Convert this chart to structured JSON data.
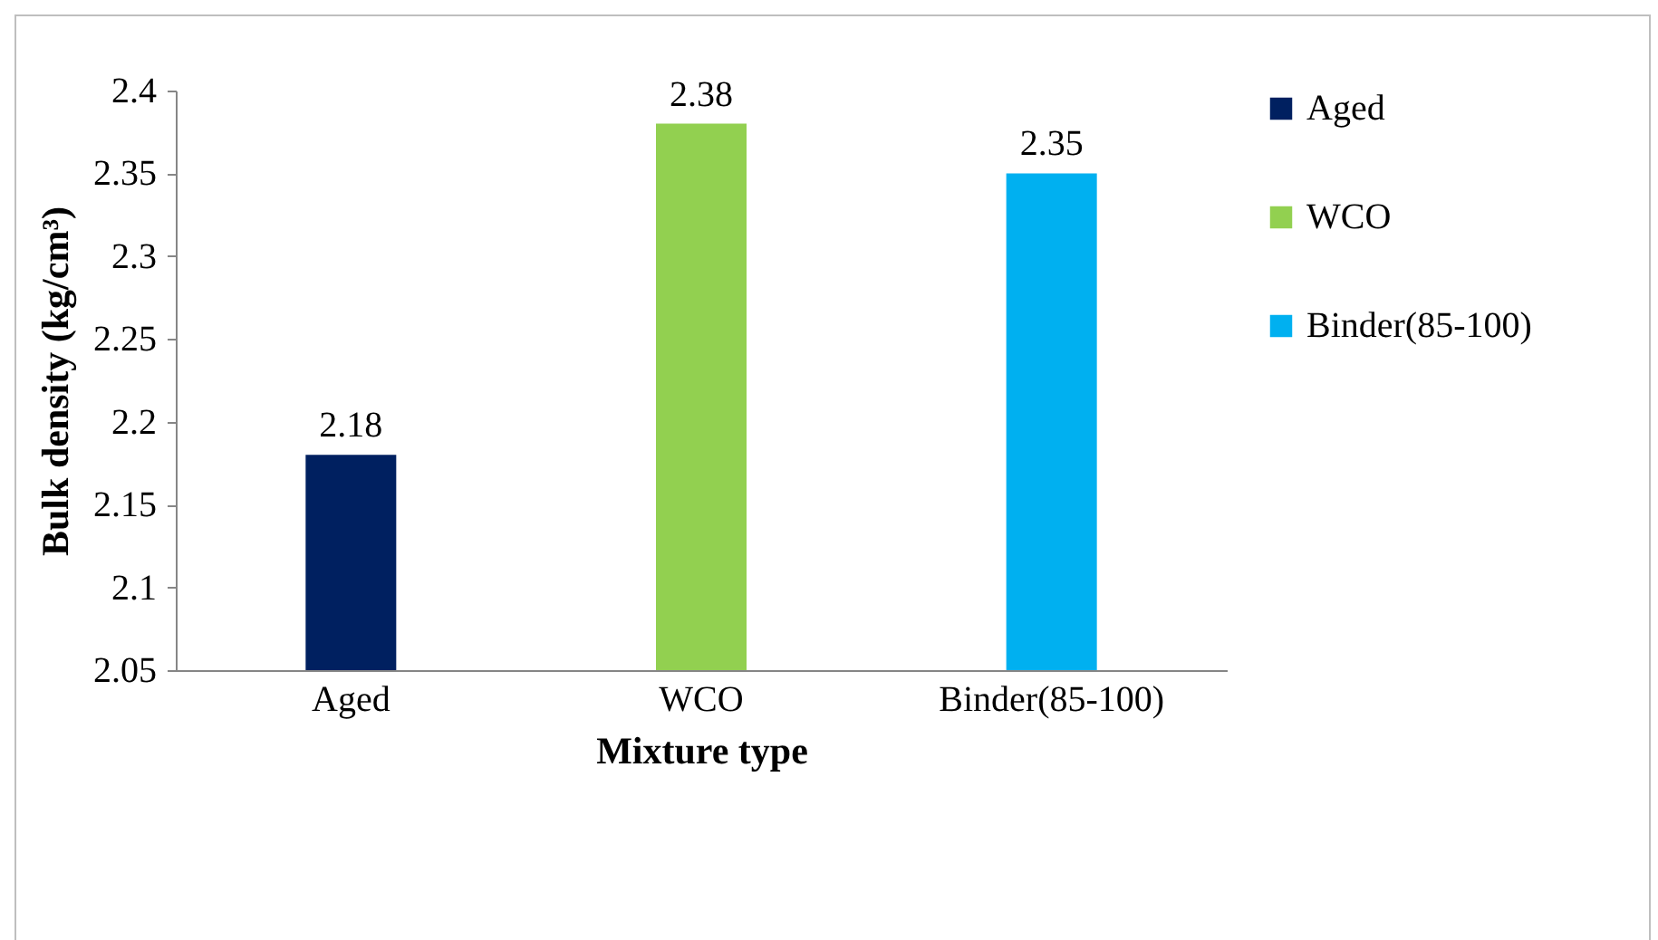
{
  "chart_data": {
    "type": "bar",
    "xlabel": "Mixture type",
    "ylabel": "Bulk density (kg/cm³)",
    "categories": [
      "Aged",
      "WCO",
      "Binder(85-100)"
    ],
    "series": [
      {
        "name": "Aged",
        "color": "#002060",
        "values": [
          2.18,
          null,
          null
        ]
      },
      {
        "name": "WCO",
        "color": "#92d050",
        "values": [
          null,
          2.38,
          null
        ]
      },
      {
        "name": "Binder(85-100)",
        "color": "#00b0f0",
        "values": [
          null,
          null,
          2.35
        ]
      }
    ],
    "ylim": [
      2.05,
      2.4
    ],
    "yticks": [
      2.05,
      2.1,
      2.15,
      2.2,
      2.25,
      2.3,
      2.35,
      2.4
    ],
    "data_labels": true,
    "legend": "right"
  }
}
